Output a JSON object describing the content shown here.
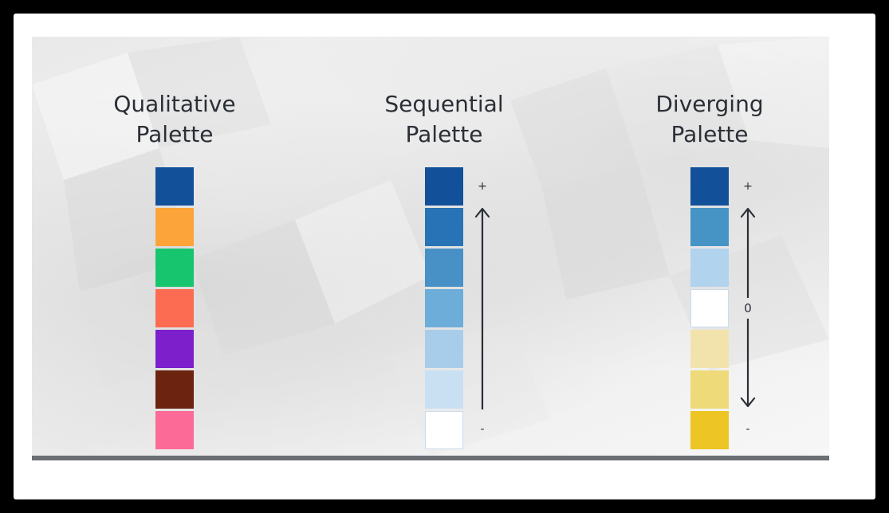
{
  "palettes": [
    {
      "title_line1": "Qualitative",
      "title_line2": "Palette",
      "swatches": [
        "#12519A",
        "#FCA43A",
        "#17C56E",
        "#FC6C52",
        "#7D1FCB",
        "#6C230F",
        "#FC6A98"
      ]
    },
    {
      "title_line1": "Sequential",
      "title_line2": "Palette",
      "swatches": [
        "#12519A",
        "#2873B6",
        "#4791C7",
        "#6DADDA",
        "#A8CDEB",
        "#C9E0F3",
        "#FFFFFF"
      ],
      "top_marker": "+",
      "bottom_marker": "-"
    },
    {
      "title_line1": "Diverging",
      "title_line2": "Palette",
      "swatches": [
        "#12519A",
        "#4694C6",
        "#B2D3EE",
        "#FFFFFF",
        "#F2E3AD",
        "#EEDA78",
        "#EDC524"
      ],
      "top_marker": "+",
      "middle_marker": "0",
      "bottom_marker": "-"
    }
  ],
  "colors": {
    "text": "#2B2F36",
    "arrow": "#2B2F36",
    "bottom_bar": "#6B6E73",
    "frame": "#000000"
  }
}
